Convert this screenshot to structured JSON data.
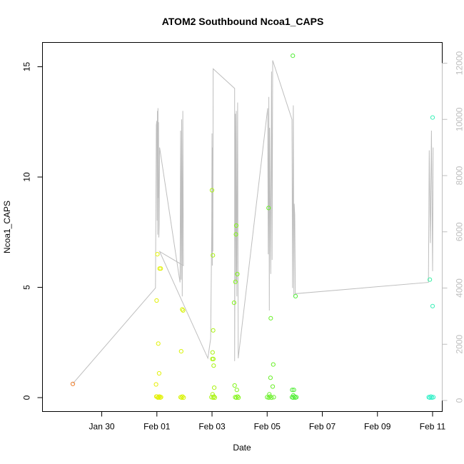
{
  "chart_data": {
    "type": "scatter",
    "title": "ATOM2 Southbound Ncoa1_CAPS",
    "xlabel": "Date",
    "ylabel": "Ncoa1_CAPS",
    "ylim": [
      0,
      16
    ],
    "y2lim": [
      0,
      12500
    ],
    "xlim_days": [
      -2.15,
      12.35
    ],
    "x_ticks": [
      {
        "day": 0,
        "label": "Jan 30"
      },
      {
        "day": 2,
        "label": "Feb 01"
      },
      {
        "day": 4,
        "label": "Feb 03"
      },
      {
        "day": 6,
        "label": "Feb 05"
      },
      {
        "day": 8,
        "label": "Feb 07"
      },
      {
        "day": 10,
        "label": "Feb 09"
      },
      {
        "day": 12,
        "label": "Feb 11"
      }
    ],
    "y_ticks": [
      0,
      5,
      10,
      15
    ],
    "y2_ticks": [
      0,
      2000,
      4000,
      6000,
      8000,
      10000,
      12000
    ],
    "grid": false,
    "colors": {
      "line": "#bebebe",
      "axis": "#000000",
      "axis2": "#bebebe"
    },
    "series": [
      {
        "axis": "left",
        "marker": "open-circle",
        "points": [
          [
            -1.05,
            0.62,
            "#ee7d2a"
          ],
          [
            1.97,
            0.6,
            "#e8ee0c"
          ],
          [
            1.98,
            0.05,
            "#e8ee0c"
          ],
          [
            2.0,
            0.05,
            "#e8ee0c"
          ],
          [
            2.02,
            6.5,
            "#e2f10a"
          ],
          [
            2.05,
            2.45,
            "#e2f10a"
          ],
          [
            2.08,
            1.1,
            "#e2f10a"
          ],
          [
            2.1,
            5.85,
            "#e2f10a"
          ],
          [
            2.14,
            5.85,
            "#e2f10a"
          ],
          [
            1.99,
            4.4,
            "#e2f10a"
          ],
          [
            2.04,
            0.0,
            "#e2f10a"
          ],
          [
            2.06,
            0.02,
            "#e2f10a"
          ],
          [
            2.09,
            0.05,
            "#e2f10a"
          ],
          [
            2.12,
            0.0,
            "#e2f10a"
          ],
          [
            2.15,
            0.02,
            "#e2f10a"
          ],
          [
            2.88,
            2.1,
            "#d8f308"
          ],
          [
            2.92,
            4.0,
            "#d8f308"
          ],
          [
            2.95,
            3.95,
            "#d8f308"
          ],
          [
            2.86,
            0.02,
            "#d8f308"
          ],
          [
            2.9,
            0.0,
            "#d8f308"
          ],
          [
            2.93,
            0.05,
            "#d8f308"
          ],
          [
            2.97,
            0.0,
            "#d8f308"
          ],
          [
            4.0,
            9.4,
            "#aaf314"
          ],
          [
            4.03,
            6.45,
            "#aaf314"
          ],
          [
            4.04,
            3.05,
            "#aaf314"
          ],
          [
            4.02,
            2.05,
            "#aaf314"
          ],
          [
            4.01,
            1.75,
            "#aaf314"
          ],
          [
            4.05,
            1.75,
            "#aaf314"
          ],
          [
            4.06,
            1.45,
            "#aaf314"
          ],
          [
            4.08,
            0.45,
            "#aaf314"
          ],
          [
            4.02,
            0.15,
            "#aaf314"
          ],
          [
            3.98,
            0.02,
            "#aaf314"
          ],
          [
            4.04,
            0.0,
            "#aaf314"
          ],
          [
            4.07,
            0.05,
            "#aaf314"
          ],
          [
            4.1,
            0.0,
            "#aaf314"
          ],
          [
            4.8,
            4.3,
            "#84f51c"
          ],
          [
            4.85,
            5.25,
            "#84f51c"
          ],
          [
            4.88,
            7.8,
            "#84f51c"
          ],
          [
            4.87,
            7.4,
            "#84f51c"
          ],
          [
            4.92,
            5.6,
            "#84f51c"
          ],
          [
            4.82,
            0.55,
            "#84f51c"
          ],
          [
            4.9,
            0.35,
            "#84f51c"
          ],
          [
            4.84,
            0.02,
            "#84f51c"
          ],
          [
            4.88,
            0.0,
            "#84f51c"
          ],
          [
            4.93,
            0.05,
            "#84f51c"
          ],
          [
            4.96,
            0.0,
            "#84f51c"
          ],
          [
            6.05,
            8.6,
            "#6af02a"
          ],
          [
            6.13,
            3.6,
            "#6af02a"
          ],
          [
            6.22,
            1.5,
            "#6af02a"
          ],
          [
            6.12,
            0.9,
            "#6af02a"
          ],
          [
            6.2,
            0.5,
            "#6af02a"
          ],
          [
            6.08,
            0.15,
            "#6af02a"
          ],
          [
            6.0,
            0.02,
            "#6af02a"
          ],
          [
            6.06,
            0.0,
            "#6af02a"
          ],
          [
            6.1,
            0.05,
            "#6af02a"
          ],
          [
            6.16,
            0.0,
            "#6af02a"
          ],
          [
            6.24,
            0.02,
            "#6af02a"
          ],
          [
            6.93,
            15.5,
            "#54ee3a"
          ],
          [
            7.03,
            4.6,
            "#54ee3a"
          ],
          [
            6.91,
            0.35,
            "#54ee3a"
          ],
          [
            6.97,
            0.35,
            "#54ee3a"
          ],
          [
            6.95,
            0.1,
            "#54ee3a"
          ],
          [
            6.9,
            0.02,
            "#54ee3a"
          ],
          [
            6.94,
            0.0,
            "#54ee3a"
          ],
          [
            6.99,
            0.05,
            "#54ee3a"
          ],
          [
            7.02,
            0.0,
            "#54ee3a"
          ],
          [
            7.06,
            0.02,
            "#54ee3a"
          ],
          [
            11.9,
            5.35,
            "#3cf0a6"
          ],
          [
            12.0,
            12.7,
            "#3cf0b8"
          ],
          [
            12.0,
            4.15,
            "#3cf0b8"
          ],
          [
            11.86,
            0.02,
            "#30f0c8"
          ],
          [
            11.9,
            0.0,
            "#30f0c8"
          ],
          [
            11.94,
            0.05,
            "#30f0c8"
          ],
          [
            11.98,
            0.0,
            "#30f0c8"
          ],
          [
            12.03,
            0.02,
            "#30f0c8"
          ]
        ]
      },
      {
        "axis": "right",
        "style": "line",
        "color": "#bebebe",
        "points": [
          [
            -1.05,
            600
          ],
          [
            1.95,
            4000
          ],
          [
            1.98,
            9800
          ],
          [
            2.0,
            9950
          ],
          [
            2.01,
            6400
          ],
          [
            2.02,
            10300
          ],
          [
            2.03,
            5900
          ],
          [
            2.04,
            10400
          ],
          [
            2.05,
            7200
          ],
          [
            2.06,
            9900
          ],
          [
            2.07,
            5800
          ],
          [
            2.08,
            6200
          ],
          [
            2.1,
            9000
          ],
          [
            2.84,
            4200
          ],
          [
            2.86,
            9600
          ],
          [
            2.88,
            4300
          ],
          [
            2.9,
            10000
          ],
          [
            2.92,
            3700
          ],
          [
            2.94,
            10300
          ],
          [
            2.96,
            4800
          ],
          [
            2.1,
            5300
          ],
          [
            3.85,
            1500
          ],
          [
            3.95,
            2200
          ],
          [
            3.99,
            6000
          ],
          [
            4.0,
            9500
          ],
          [
            4.01,
            4800
          ],
          [
            4.02,
            9000
          ],
          [
            4.03,
            5300
          ],
          [
            4.04,
            11800
          ],
          [
            4.82,
            11100
          ],
          [
            4.82,
            1400
          ],
          [
            4.85,
            10200
          ],
          [
            4.87,
            4200
          ],
          [
            4.88,
            10300
          ],
          [
            4.9,
            3700
          ],
          [
            4.93,
            10600
          ],
          [
            4.95,
            1500
          ],
          [
            6.02,
            10400
          ],
          [
            6.04,
            5200
          ],
          [
            6.06,
            10800
          ],
          [
            6.08,
            3200
          ],
          [
            6.09,
            9700
          ],
          [
            6.13,
            4500
          ],
          [
            6.16,
            11700
          ],
          [
            6.18,
            5000
          ],
          [
            6.2,
            12100
          ],
          [
            6.9,
            10000
          ],
          [
            6.92,
            4000
          ],
          [
            6.95,
            10500
          ],
          [
            6.97,
            3700
          ],
          [
            6.98,
            7000
          ],
          [
            7.0,
            6600
          ],
          [
            7.02,
            3800
          ],
          [
            11.85,
            4200
          ],
          [
            11.88,
            8900
          ],
          [
            11.92,
            5600
          ],
          [
            11.96,
            9600
          ],
          [
            12.0,
            4600
          ],
          [
            12.02,
            9000
          ]
        ]
      }
    ]
  }
}
